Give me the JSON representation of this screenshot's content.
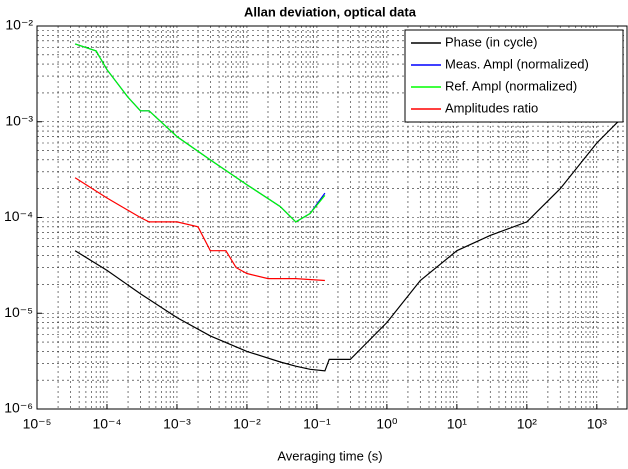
{
  "chart_data": {
    "type": "line",
    "title": "Allan deviation, optical data",
    "x_label": "Averaging time (s)",
    "x_scale": "log",
    "y_scale": "log",
    "grid": true,
    "minor_grid": true,
    "legend": "upper right",
    "xlim": [
      1e-05,
      2700
    ],
    "ylim": [
      1e-06,
      0.01
    ],
    "xticks": [
      {
        "value": 1e-05,
        "label": "10⁻⁵"
      },
      {
        "value": 0.0001,
        "label": "10⁻⁴"
      },
      {
        "value": 0.001,
        "label": "10⁻³"
      },
      {
        "value": 0.01,
        "label": "10⁻²"
      },
      {
        "value": 0.1,
        "label": "10⁻¹"
      },
      {
        "value": 1,
        "label": "10⁰"
      },
      {
        "value": 10,
        "label": "10¹"
      },
      {
        "value": 100,
        "label": "10²"
      },
      {
        "value": 1000,
        "label": "10³"
      }
    ],
    "yticks": [
      {
        "value": 1e-06,
        "label": "10⁻⁶"
      },
      {
        "value": 1e-05,
        "label": "10⁻⁵"
      },
      {
        "value": 0.0001,
        "label": "10⁻⁴"
      },
      {
        "value": 0.001,
        "label": "10⁻³"
      },
      {
        "value": 0.01,
        "label": "10⁻²"
      }
    ],
    "series": [
      {
        "name": "Phase (in cycle)",
        "color": "#000000",
        "x": [
          3.5e-05,
          0.0001,
          0.0003,
          0.001,
          0.003,
          0.01,
          0.03,
          0.05,
          0.08,
          0.13,
          0.15,
          0.3,
          1,
          3,
          10,
          30,
          100,
          300,
          1000,
          2000
        ],
        "values": [
          4.5e-05,
          2.8e-05,
          1.6e-05,
          9e-06,
          5.8e-06,
          4e-06,
          3.1e-06,
          2.8e-06,
          2.6e-06,
          2.5e-06,
          3.3e-06,
          3.3e-06,
          8e-06,
          2.2e-05,
          4.5e-05,
          6.5e-05,
          9e-05,
          0.0002,
          0.0006,
          0.001
        ]
      },
      {
        "name": "Meas. Ampl (normalized)",
        "color": "#0000ff",
        "x": [
          3.5e-05,
          7e-05,
          0.0001,
          0.0002,
          0.0003,
          0.0004,
          0.001,
          0.003,
          0.01,
          0.03,
          0.05,
          0.08,
          0.13
        ],
        "values": [
          0.0065,
          0.0055,
          0.0035,
          0.0018,
          0.0013,
          0.0013,
          0.0007,
          0.0004,
          0.00022,
          0.00013,
          9e-05,
          0.00011,
          0.00018
        ]
      },
      {
        "name": "Ref. Ampl (normalized)",
        "color": "#00ff00",
        "x": [
          3.5e-05,
          7e-05,
          0.0001,
          0.0002,
          0.0003,
          0.0004,
          0.001,
          0.003,
          0.01,
          0.03,
          0.05,
          0.08,
          0.13
        ],
        "values": [
          0.0065,
          0.0055,
          0.0035,
          0.0018,
          0.0013,
          0.0013,
          0.0007,
          0.0004,
          0.00022,
          0.00013,
          9e-05,
          0.00011,
          0.00017
        ]
      },
      {
        "name": "Amplitudes ratio",
        "color": "#ff0000",
        "x": [
          3.5e-05,
          0.0001,
          0.0003,
          0.0004,
          0.001,
          0.002,
          0.003,
          0.005,
          0.007,
          0.01,
          0.02,
          0.05,
          0.13
        ],
        "values": [
          0.00026,
          0.00016,
          0.0001,
          9e-05,
          9e-05,
          8e-05,
          4.5e-05,
          4.5e-05,
          3e-05,
          2.6e-05,
          2.3e-05,
          2.3e-05,
          2.2e-05
        ]
      }
    ]
  }
}
